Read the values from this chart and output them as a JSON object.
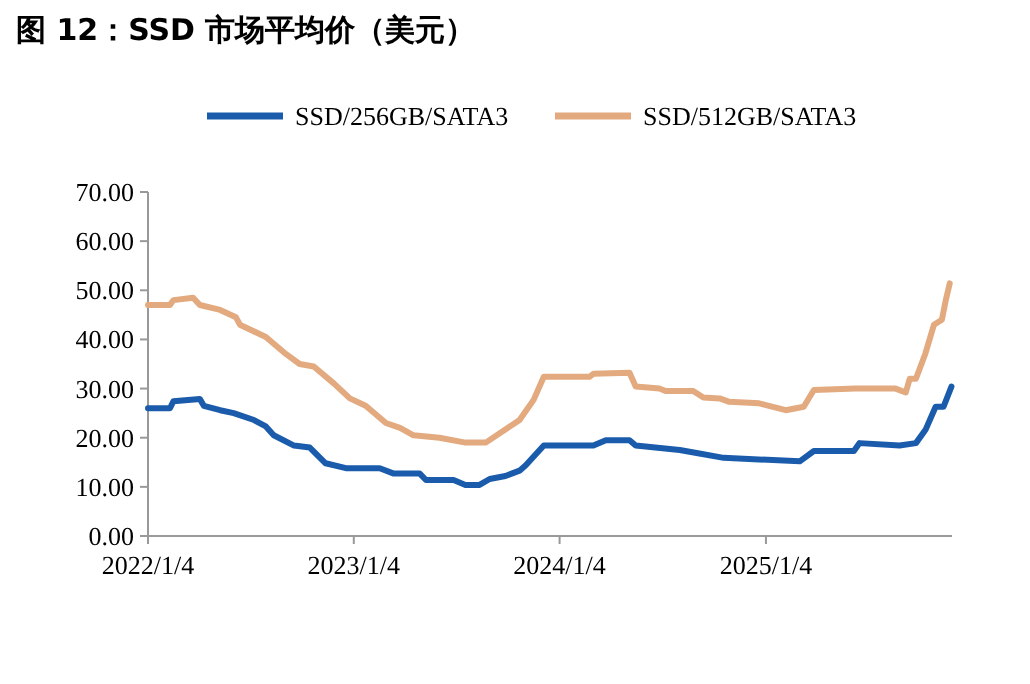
{
  "chart_data": {
    "type": "line",
    "title": "图 12：SSD 市场平均价（美元）",
    "legend": "top",
    "marker": "none",
    "line_style": "solid",
    "grid": false,
    "xlim": [
      "2022-01-04",
      "2025-11-30"
    ],
    "xticks": [
      {
        "value": "2022-01-04",
        "label": "2022/1/4"
      },
      {
        "value": "2023-01-04",
        "label": "2023/1/4"
      },
      {
        "value": "2024-01-04",
        "label": "2024/1/4"
      },
      {
        "value": "2025-01-04",
        "label": "2025/1/4"
      }
    ],
    "ylim": [
      0,
      70
    ],
    "yticks": [
      {
        "value": 0,
        "label": "0.00"
      },
      {
        "value": 10,
        "label": "10.00"
      },
      {
        "value": 20,
        "label": "20.00"
      },
      {
        "value": 30,
        "label": "30.00"
      },
      {
        "value": 40,
        "label": "40.00"
      },
      {
        "value": 50,
        "label": "50.00"
      },
      {
        "value": 60,
        "label": "60.00"
      },
      {
        "value": 70,
        "label": "70.00"
      }
    ],
    "series": [
      {
        "name": "SSD/256GB/SATA3",
        "color": "#1a5cab",
        "x": [
          "2022-01-04",
          "2022-02-12",
          "2022-02-18",
          "2022-04-06",
          "2022-04-13",
          "2022-05-12",
          "2022-06-05",
          "2022-07-11",
          "2022-08-01",
          "2022-08-15",
          "2022-09-20",
          "2022-10-18",
          "2022-11-15",
          "2022-12-21",
          "2023-02-19",
          "2023-03-16",
          "2023-05-01",
          "2023-05-12",
          "2023-06-30",
          "2023-07-21",
          "2023-08-15",
          "2023-09-02",
          "2023-09-30",
          "2023-10-25",
          "2023-11-05",
          "2023-12-07",
          "2024-03-04",
          "2024-03-26",
          "2024-05-07",
          "2024-05-18",
          "2024-08-04",
          "2024-09-08",
          "2024-10-21",
          "2025-03-05",
          "2025-03-30",
          "2025-06-09",
          "2025-06-19",
          "2025-08-29",
          "2025-09-27",
          "2025-10-14",
          "2025-11-01",
          "2025-11-15",
          "2025-11-29"
        ],
        "values": [
          26,
          26,
          27.4,
          27.9,
          26.5,
          25.6,
          25,
          23.6,
          22.3,
          20.5,
          18.4,
          18,
          14.8,
          13.8,
          13.8,
          12.7,
          12.7,
          11.4,
          11.4,
          10.4,
          10.4,
          11.6,
          12.2,
          13.3,
          14.4,
          18.4,
          18.4,
          19.5,
          19.5,
          18.4,
          17.5,
          16.8,
          15.9,
          15.2,
          17.3,
          17.3,
          18.9,
          18.4,
          18.9,
          21.6,
          26.3,
          26.3,
          30.4
        ]
      },
      {
        "name": "SSD/512GB/SATA3",
        "color": "#e3aa80",
        "x": [
          "2022-01-04",
          "2022-02-12",
          "2022-02-18",
          "2022-03-25",
          "2022-04-06",
          "2022-05-12",
          "2022-06-09",
          "2022-06-16",
          "2022-08-01",
          "2022-09-06",
          "2022-09-30",
          "2022-10-25",
          "2022-11-30",
          "2022-12-28",
          "2023-01-25",
          "2023-03-02",
          "2023-03-27",
          "2023-04-20",
          "2023-06-05",
          "2023-07-21",
          "2023-08-26",
          "2023-10-25",
          "2023-11-19",
          "2023-12-07",
          "2024-02-26",
          "2024-03-04",
          "2024-05-07",
          "2024-05-18",
          "2024-06-29",
          "2024-07-10",
          "2024-08-28",
          "2024-09-15",
          "2024-10-14",
          "2024-10-31",
          "2024-12-23",
          "2024-12-30",
          "2025-02-08",
          "2025-03-12",
          "2025-03-30",
          "2025-06-12",
          "2025-08-22",
          "2025-09-09",
          "2025-09-16",
          "2025-09-27",
          "2025-10-14",
          "2025-10-29",
          "2025-11-12",
          "2025-11-19",
          "2025-11-26"
        ],
        "values": [
          47,
          47,
          48,
          48.5,
          47,
          46,
          44.5,
          43,
          40.5,
          37,
          35,
          34.5,
          31,
          28,
          26.5,
          23,
          22,
          20.5,
          20,
          19,
          19,
          23.6,
          27.7,
          32.4,
          32.4,
          33,
          33.2,
          30.4,
          30,
          29.5,
          29.5,
          28.2,
          28,
          27.3,
          27,
          26.8,
          25.6,
          26.3,
          29.7,
          30,
          30,
          29.2,
          32,
          32,
          37.2,
          43,
          44,
          48,
          51.4
        ]
      }
    ]
  }
}
